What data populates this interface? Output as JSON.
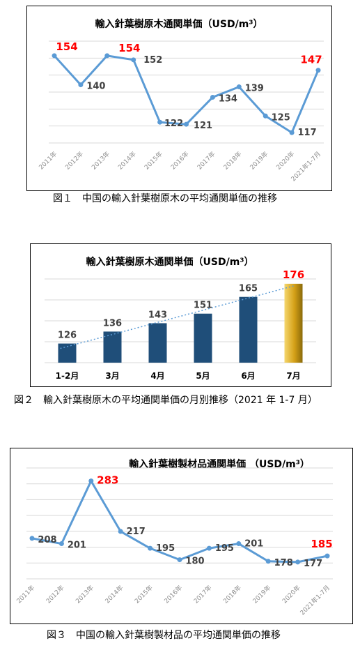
{
  "figures": [
    {
      "id": "fig1",
      "caption": "図１　中国の輸入針葉樹原木の平均通関単価の推移",
      "chart_data": {
        "type": "line",
        "title": "輸入針葉樹原木通関単価（USD/m³）",
        "categories": [
          "2011年",
          "2012年",
          "2013年",
          "2014年",
          "2015年",
          "2016年",
          "2017年",
          "2018年",
          "2019年",
          "2020年",
          "2021年1-7月"
        ],
        "series": [
          {
            "values": [
              154,
              140,
              154,
              152,
              122,
              121,
              134,
              139,
              125,
              117,
              147
            ]
          }
        ],
        "highlight_indices": [
          0,
          2,
          10
        ],
        "ylim": [
          112,
          161
        ],
        "grid": true,
        "line_color": "#5b9bd5",
        "highlight_color": "#ff0000"
      }
    },
    {
      "id": "fig2",
      "caption": "図２　輸入針葉樹原木の平均通関単価の月別推移（2021 年 1-7 月）",
      "chart_data": {
        "type": "bar",
        "title": "輸入針葉樹原木通関単価（USD/m³）",
        "categories": [
          "1-2月",
          "3月",
          "4月",
          "5月",
          "6月",
          "7月"
        ],
        "values": [
          126,
          136,
          143,
          151,
          165,
          176
        ],
        "highlight_indices": [
          5
        ],
        "ylim": [
          110,
          180
        ],
        "grid": true,
        "trendline": "linear",
        "bar_color": "#1f4e79",
        "highlight_color": "#d4a017"
      }
    },
    {
      "id": "fig3",
      "caption": "図３　中国の輸入針葉樹製材品の平均通関単価の推移",
      "chart_data": {
        "type": "line",
        "title": "輸入針葉樹製材品通関単価 （USD/m³）",
        "categories": [
          "2011年",
          "2012年",
          "2013年",
          "2014年",
          "2015年",
          "2016年",
          "2017年",
          "2018年",
          "2019年",
          "2020年",
          "2021年1-7月"
        ],
        "series": [
          {
            "values": [
              208,
              201,
              283,
              217,
              195,
              180,
              195,
              201,
              178,
              177,
              185
            ]
          }
        ],
        "highlight_indices": [
          2,
          10
        ],
        "ylim": [
          155,
          300
        ],
        "grid": true,
        "line_color": "#5b9bd5",
        "highlight_color": "#ff0000"
      }
    }
  ]
}
